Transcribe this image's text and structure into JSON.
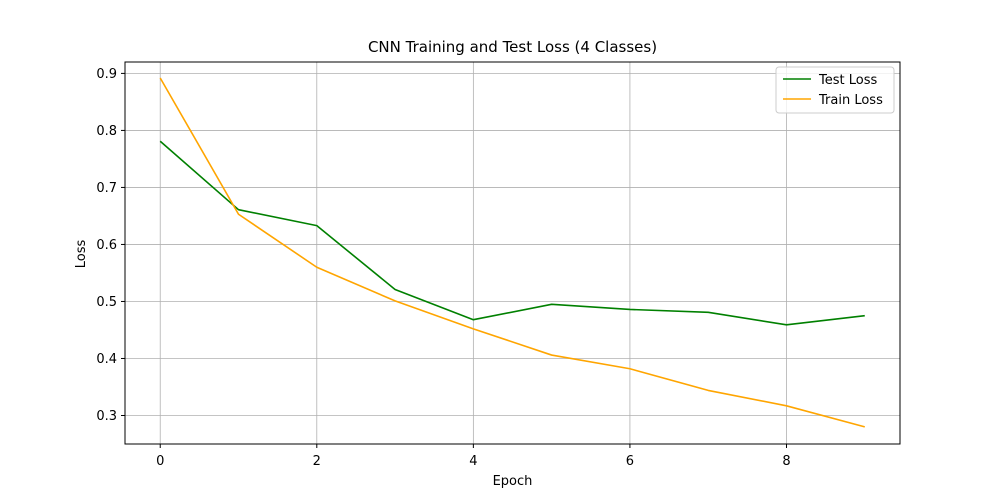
{
  "chart_data": {
    "type": "line",
    "title": "CNN Training and Test Loss (4 Classes)",
    "xlabel": "Epoch",
    "ylabel": "Loss",
    "x": [
      0,
      1,
      2,
      3,
      4,
      5,
      6,
      7,
      8,
      9
    ],
    "xticks": [
      0,
      2,
      4,
      6,
      8
    ],
    "yticks": [
      0.3,
      0.4,
      0.5,
      0.6,
      0.7,
      0.8,
      0.9
    ],
    "xlim": [
      -0.45,
      9.45
    ],
    "ylim": [
      0.25,
      0.92
    ],
    "grid": true,
    "legend_position": "top-right",
    "series": [
      {
        "name": "Test Loss",
        "color": "#008000",
        "values": [
          0.781,
          0.661,
          0.633,
          0.521,
          0.468,
          0.495,
          0.486,
          0.481,
          0.459,
          0.475
        ]
      },
      {
        "name": "Train Loss",
        "color": "#ffa500",
        "values": [
          0.892,
          0.653,
          0.56,
          0.501,
          0.452,
          0.406,
          0.382,
          0.344,
          0.317,
          0.28
        ]
      }
    ]
  }
}
